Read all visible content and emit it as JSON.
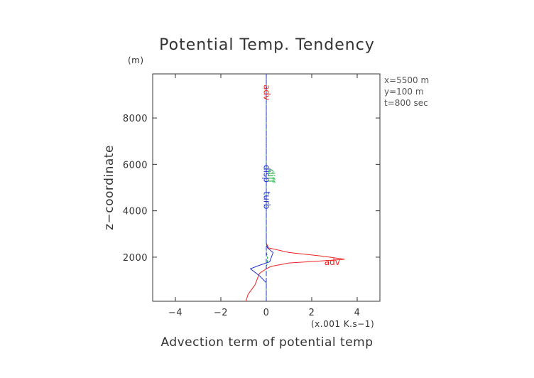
{
  "chart_data": {
    "type": "line",
    "title": "Potential Temp. Tendency",
    "xlabel": "Advection term of potential temp",
    "ylabel": "z−coordinate",
    "x_unit": "(x.001 K.s−1)",
    "y_unit": "(m)",
    "xlim": [
      -5,
      5
    ],
    "ylim": [
      100,
      9900
    ],
    "x_ticks": [
      -4,
      -2,
      0,
      2,
      4
    ],
    "x_tick_labels": [
      "−4",
      "−2",
      "0",
      "2",
      "4"
    ],
    "y_ticks": [
      2000,
      4000,
      6000,
      8000
    ],
    "y_tick_labels": [
      "2000",
      "4000",
      "6000",
      "8000"
    ],
    "info_lines": [
      "x=5500  m",
      "y=100  m",
      "t=800 sec"
    ],
    "series": [
      {
        "name": "adv",
        "color": "#ee2222",
        "x": [
          -0.9,
          -0.8,
          -0.5,
          -0.3,
          0.0,
          0.2,
          1.0,
          2.6,
          3.45,
          2.4,
          1.0,
          0.1,
          0.0,
          0.0,
          0.0
        ],
        "y": [
          100,
          400,
          800,
          1300,
          1500,
          1600,
          1750,
          1850,
          1910,
          2050,
          2200,
          2400,
          2600,
          6000,
          9900
        ]
      },
      {
        "name": "turb",
        "color": "#2233cc",
        "x": [
          0.0,
          0.0,
          -0.3,
          -0.7,
          -0.3,
          0.15,
          0.3,
          0.05,
          0.0,
          0.0
        ],
        "y": [
          100,
          900,
          1200,
          1500,
          1650,
          1800,
          2200,
          2400,
          2600,
          9900
        ]
      },
      {
        "name": "diff",
        "color": "#22aa44",
        "x": [
          0.0,
          0.0,
          0.06,
          0.0,
          0.0
        ],
        "y": [
          100,
          1500,
          1900,
          2300,
          9900
        ]
      },
      {
        "name": "disp",
        "color": "#2233cc",
        "x": [
          0.0,
          0.0
        ],
        "y": [
          100,
          9900
        ]
      }
    ],
    "curve_labels": [
      {
        "text": "adv",
        "x": 2.9,
        "y": 1770,
        "rotate": 0,
        "color": "#ee2222"
      },
      {
        "text": "adv",
        "x": 0.0,
        "y": 9100,
        "rotate": 90,
        "color": "#ee2222"
      },
      {
        "text": "turb",
        "x": 0.0,
        "y": 4450,
        "rotate": 90,
        "color": "#2233cc"
      },
      {
        "text": "disp",
        "x": 0.0,
        "y": 5600,
        "rotate": 90,
        "color": "#2233cc"
      },
      {
        "text": "diff",
        "x": 0.2,
        "y": 5500,
        "rotate": 90,
        "color": "#22aa44"
      }
    ]
  }
}
